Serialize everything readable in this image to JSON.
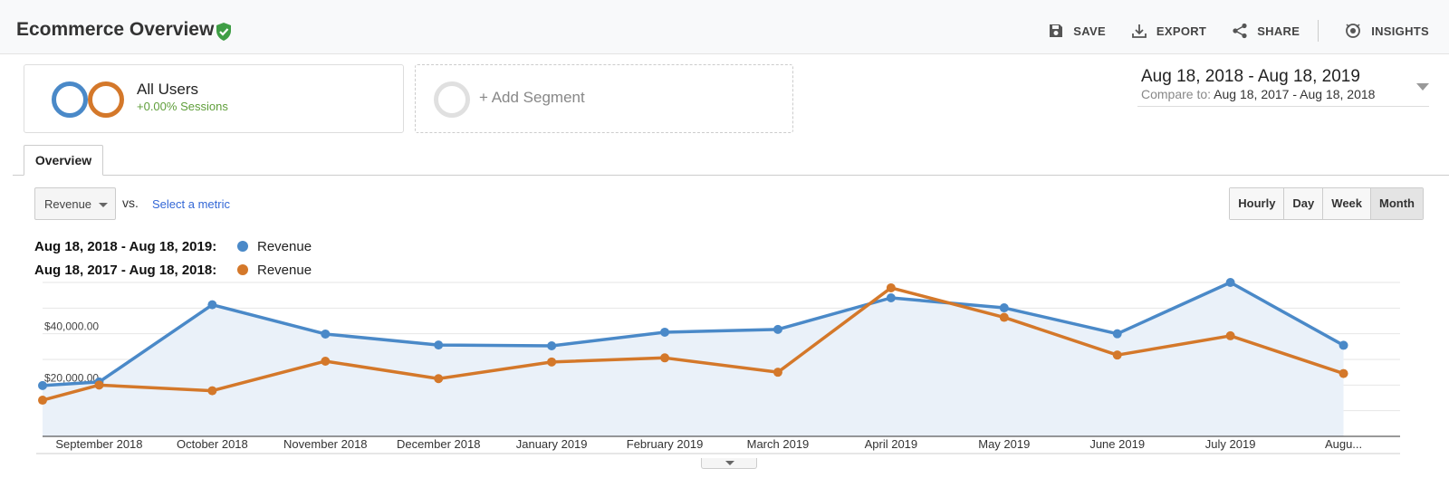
{
  "header": {
    "title": "Ecommerce Overview",
    "actions": {
      "save": "SAVE",
      "export": "EXPORT",
      "share": "SHARE",
      "insights": "INSIGHTS"
    }
  },
  "segments": {
    "all_users": {
      "title": "All Users",
      "subtitle": "+0.00% Sessions",
      "colors": [
        "#4a89c8",
        "#d4782a"
      ]
    },
    "add_segment": "+ Add Segment"
  },
  "date_range": {
    "main": "Aug 18, 2018 - Aug 18, 2019",
    "compare_label": "Compare to:",
    "compare_range": "Aug 18, 2017 - Aug 18, 2018"
  },
  "tabs": [
    {
      "label": "Overview",
      "active": true
    }
  ],
  "metric": {
    "selected": "Revenue",
    "vs": "vs.",
    "select_metric": "Select a metric"
  },
  "granularity": [
    {
      "label": "Hourly",
      "active": false
    },
    {
      "label": "Day",
      "active": false
    },
    {
      "label": "Week",
      "active": false
    },
    {
      "label": "Month",
      "active": true
    }
  ],
  "legend": [
    {
      "range": "Aug 18, 2018 - Aug 18, 2019:",
      "name": "Revenue",
      "color": "#4a89c8"
    },
    {
      "range": "Aug 18, 2017 - Aug 18, 2018:",
      "name": "Revenue",
      "color": "#d4782a"
    }
  ],
  "chart_data": {
    "type": "line",
    "categories": [
      "September 2018",
      "October 2018",
      "November 2018",
      "December 2018",
      "January 2019",
      "February 2019",
      "March 2019",
      "April 2019",
      "May 2019",
      "June 2019",
      "July 2019",
      "Augu..."
    ],
    "y_tick_labels": [
      "$20,000.00",
      "$40,000.00"
    ],
    "y_ticks": [
      20000,
      40000
    ],
    "ylim": [
      0,
      60000
    ],
    "grid": true,
    "series": [
      {
        "name": "Revenue",
        "color": "#4a89c8",
        "fill": true,
        "x": [
          0,
          0.5,
          1.5,
          2.5,
          3.5,
          4.5,
          5.5,
          6.5,
          7.5,
          8.5,
          9.5,
          10.5,
          11.5
        ],
        "values": [
          19800,
          21200,
          51300,
          39900,
          35600,
          35300,
          40600,
          41700,
          54000,
          50100,
          40000,
          60000,
          35500
        ]
      },
      {
        "name": "Revenue",
        "color": "#d4782a",
        "fill": false,
        "x": [
          0,
          0.5,
          1.5,
          2.5,
          3.5,
          4.5,
          5.5,
          6.5,
          7.5,
          8.5,
          9.5,
          10.5,
          11.5
        ],
        "values": [
          14100,
          20000,
          17800,
          29300,
          22500,
          29000,
          30600,
          25000,
          57900,
          46400,
          31700,
          39200,
          24500
        ]
      }
    ]
  }
}
